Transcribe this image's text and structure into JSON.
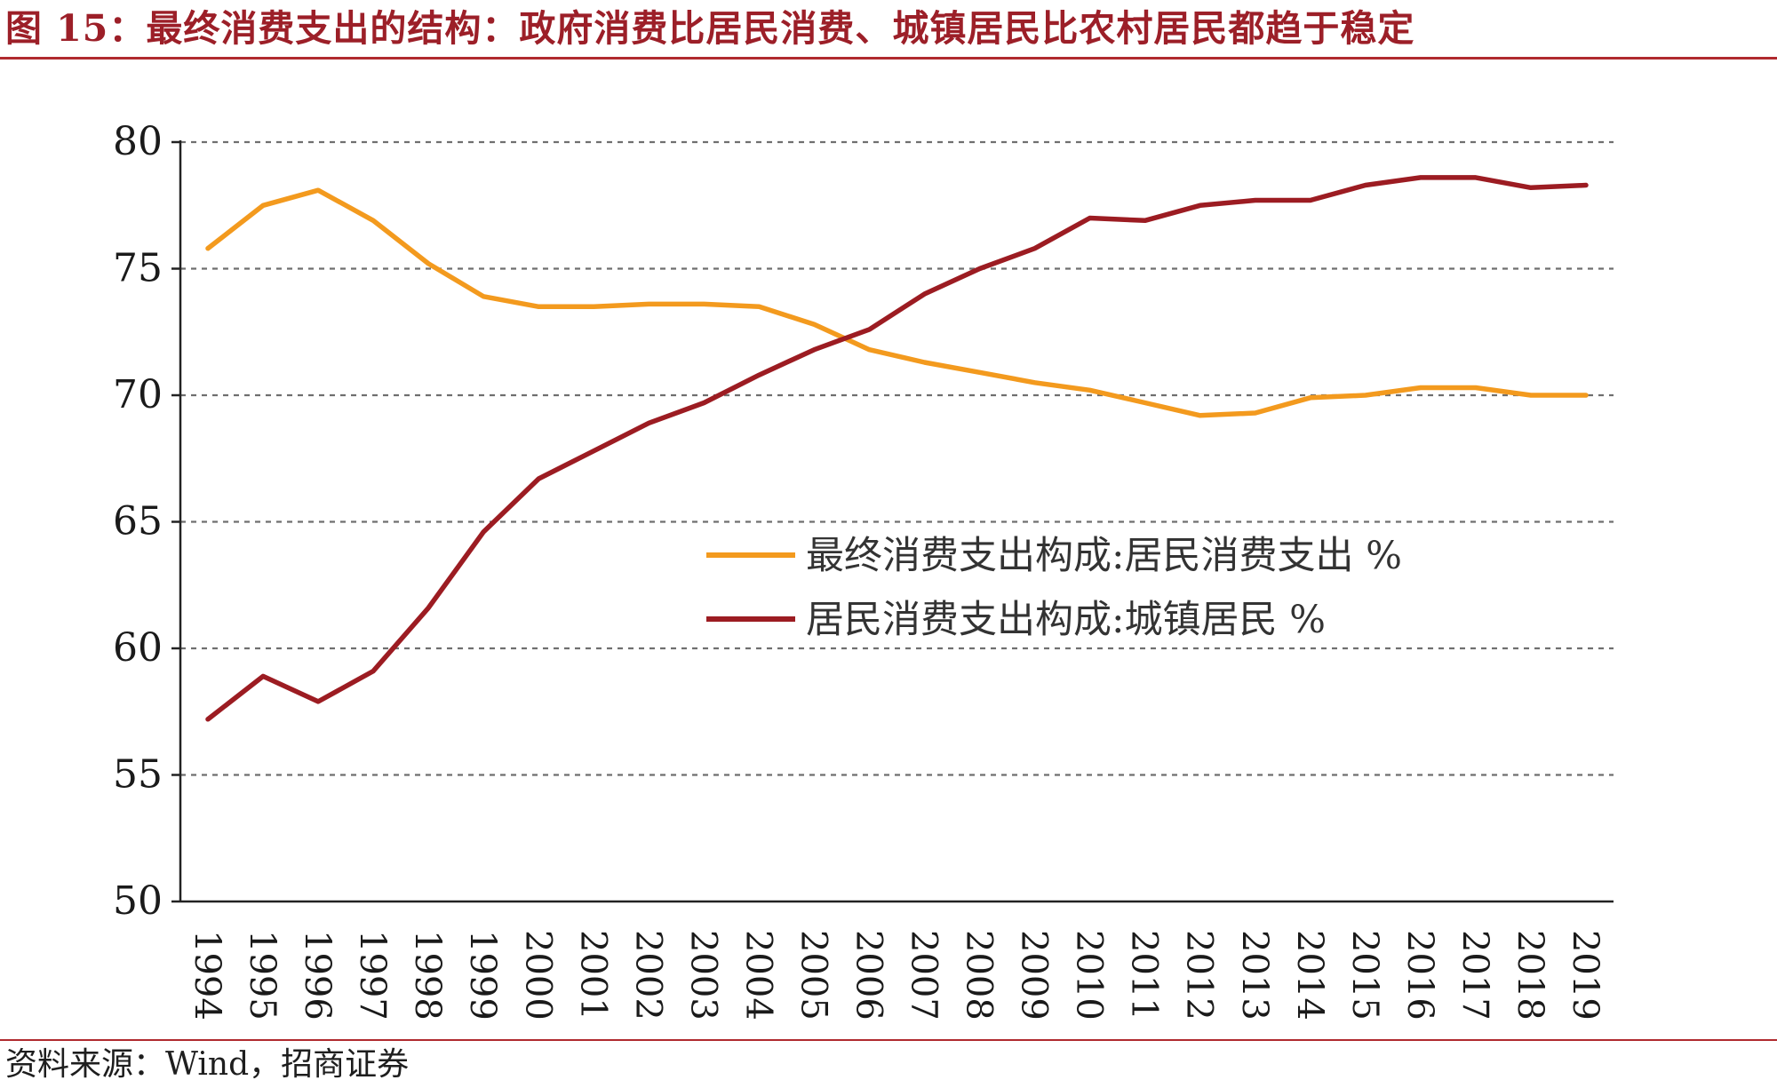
{
  "header": {
    "title": "图 15：最终消费支出的结构：政府消费比居民消费、城镇居民比农村居民都趋于稳定"
  },
  "footer": {
    "source": "资料来源：Wind，招商证券"
  },
  "chart_data": {
    "type": "line",
    "x": [
      "1994",
      "1995",
      "1996",
      "1997",
      "1998",
      "1999",
      "2000",
      "2001",
      "2002",
      "2003",
      "2004",
      "2005",
      "2006",
      "2007",
      "2008",
      "2009",
      "2010",
      "2011",
      "2012",
      "2013",
      "2014",
      "2015",
      "2016",
      "2017",
      "2018",
      "2019"
    ],
    "series": [
      {
        "name": "最终消费支出构成:居民消费支出 %",
        "color": "#f39a1e",
        "values": [
          75.8,
          77.5,
          78.1,
          76.9,
          75.2,
          73.9,
          73.5,
          73.5,
          73.6,
          73.6,
          73.5,
          72.8,
          71.8,
          71.3,
          70.9,
          70.5,
          70.2,
          69.7,
          69.2,
          69.3,
          69.9,
          70.0,
          70.3,
          70.3,
          70.0,
          70.0
        ]
      },
      {
        "name": "居民消费支出构成:城镇居民 %",
        "color": "#9c1c22",
        "values": [
          57.2,
          58.9,
          57.9,
          59.1,
          61.6,
          64.6,
          66.7,
          67.8,
          68.9,
          69.7,
          70.8,
          71.8,
          72.6,
          74.0,
          75.0,
          75.8,
          77.0,
          76.9,
          77.5,
          77.7,
          77.7,
          78.3,
          78.6,
          78.6,
          78.2,
          78.3
        ]
      }
    ],
    "yticks": [
      "50",
      "55",
      "60",
      "65",
      "70",
      "75",
      "80"
    ],
    "ylim": [
      50,
      80
    ],
    "grid": true,
    "legend_position": "center-right",
    "xlabel": "",
    "ylabel": ""
  }
}
